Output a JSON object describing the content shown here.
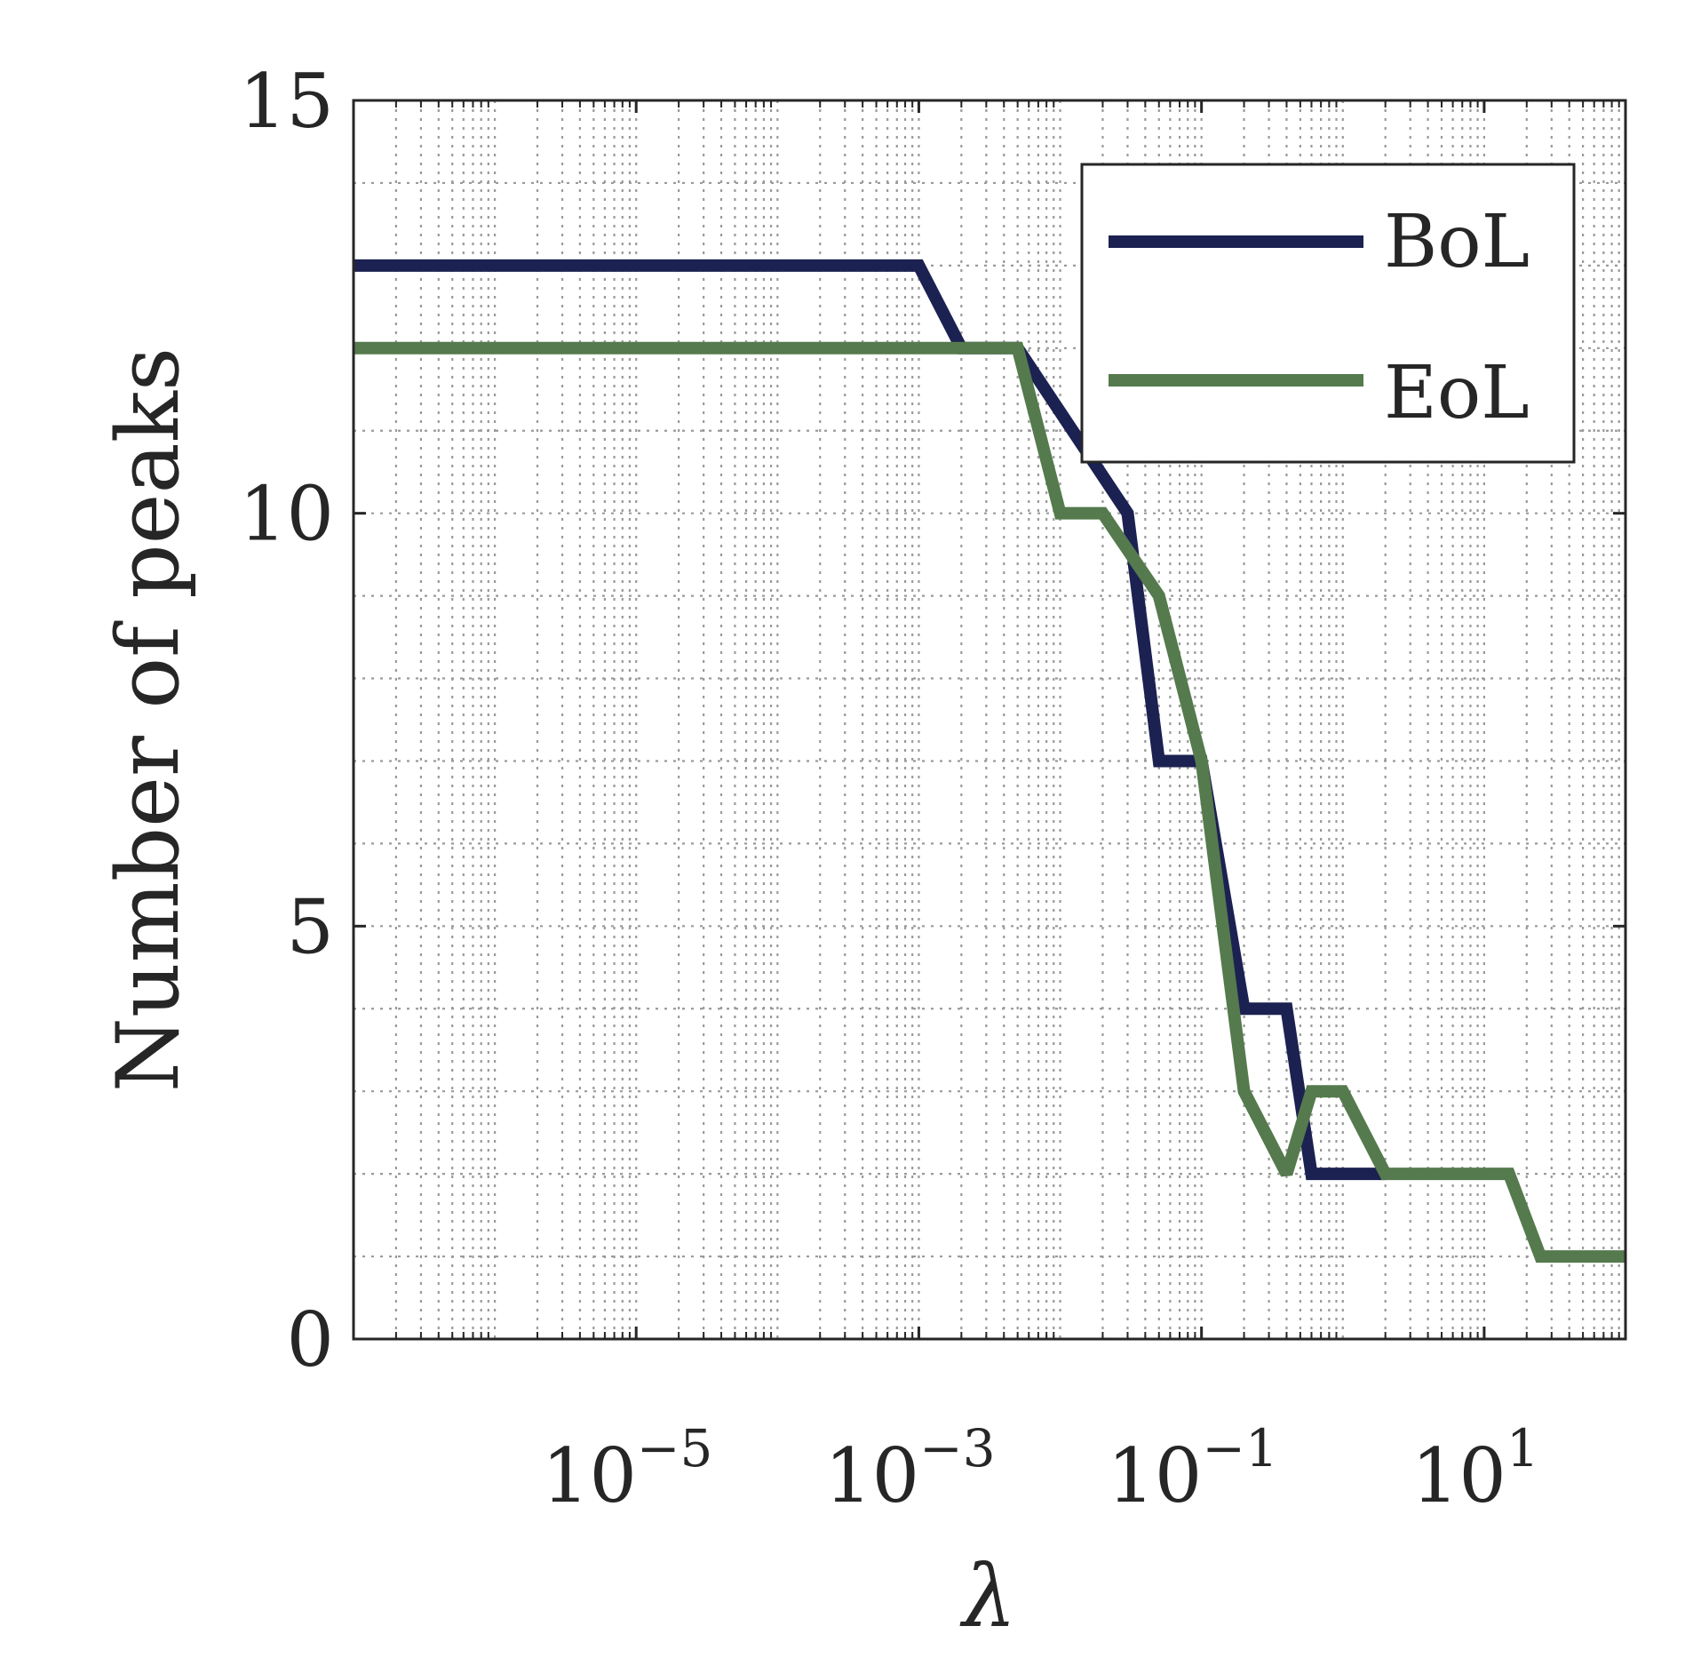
{
  "chart_data": {
    "type": "line",
    "xlabel": "λ",
    "ylabel": "Number of peaks",
    "xscale": "log",
    "xlim": [
      1e-07,
      100
    ],
    "ylim": [
      0,
      15
    ],
    "xticks": [
      1e-05,
      0.001,
      0.1,
      10
    ],
    "xtick_labels": [
      {
        "base": "10",
        "exp": "−5"
      },
      {
        "base": "10",
        "exp": "−3"
      },
      {
        "base": "10",
        "exp": "−1"
      },
      {
        "base": "10",
        "exp": "1"
      }
    ],
    "yticks": [
      0,
      5,
      10,
      15
    ],
    "ytick_labels": [
      "0",
      "5",
      "10",
      "15"
    ],
    "grid": true,
    "minor_grid": true,
    "legend_position": "top-right",
    "series": [
      {
        "name": "BoL",
        "color": "#1b2151",
        "x": [
          1e-07,
          0.001,
          0.002,
          0.005,
          0.03,
          0.05,
          0.1,
          0.2,
          0.4,
          0.6,
          1,
          2
        ],
        "y": [
          13,
          13,
          12,
          12,
          10,
          7,
          7,
          4,
          4,
          2,
          2,
          2
        ]
      },
      {
        "name": "EoL",
        "color": "#557a4d",
        "x": [
          1e-07,
          0.005,
          0.01,
          0.02,
          0.05,
          0.1,
          0.2,
          0.4,
          0.6,
          1.0,
          2.0,
          15,
          25,
          100
        ],
        "y": [
          12,
          12,
          10,
          10,
          9,
          7,
          3,
          2,
          3,
          3,
          2,
          2,
          1,
          1
        ]
      }
    ]
  }
}
